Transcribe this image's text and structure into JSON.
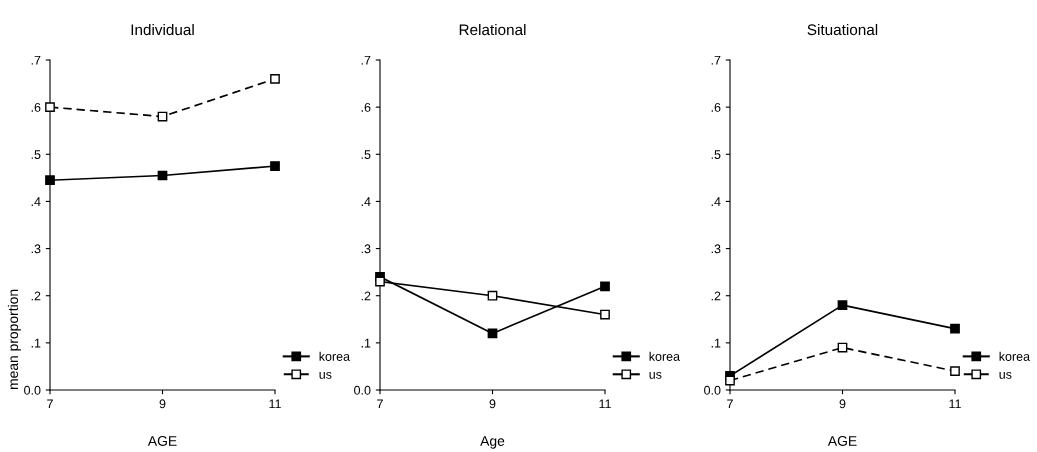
{
  "chart_data": [
    {
      "type": "line",
      "title": "Individual",
      "xlabel": "AGE",
      "ylabel": "mean proportion",
      "x": [
        7,
        9,
        11
      ],
      "xlim": [
        7,
        11
      ],
      "xticks": [
        7,
        9,
        11
      ],
      "ylim": [
        0,
        0.7
      ],
      "yticks": [
        {
          "value": 0,
          "label": "0.0"
        },
        {
          "value": 0.1,
          "label": ".1"
        },
        {
          "value": 0.2,
          "label": ".2"
        },
        {
          "value": 0.3,
          "label": ".3"
        },
        {
          "value": 0.4,
          "label": ".4"
        },
        {
          "value": 0.5,
          "label": ".5"
        },
        {
          "value": 0.6,
          "label": ".6"
        },
        {
          "value": 0.7,
          "label": ".7"
        }
      ],
      "legend": "bottom right",
      "grid": false,
      "marker": "square",
      "series": [
        {
          "name": "korea",
          "color": "#000000",
          "line_style": "solid",
          "values": [
            0.445,
            0.455,
            0.475
          ]
        },
        {
          "name": "us",
          "color": "#000000",
          "line_style": "dashed",
          "values": [
            0.6,
            0.58,
            0.66
          ]
        }
      ]
    },
    {
      "type": "line",
      "title": "Relational",
      "xlabel": "Age",
      "x": [
        7,
        9,
        11
      ],
      "xlim": [
        7,
        11
      ],
      "xticks": [
        7,
        9,
        11
      ],
      "ylim": [
        0,
        0.7
      ],
      "yticks": [
        {
          "value": 0,
          "label": "0.0"
        },
        {
          "value": 0.1,
          "label": ".1"
        },
        {
          "value": 0.2,
          "label": ".2"
        },
        {
          "value": 0.3,
          "label": ".3"
        },
        {
          "value": 0.4,
          "label": ".4"
        },
        {
          "value": 0.5,
          "label": ".5"
        },
        {
          "value": 0.6,
          "label": ".6"
        },
        {
          "value": 0.7,
          "label": ".7"
        }
      ],
      "legend": "bottom right",
      "grid": false,
      "marker": "square",
      "series": [
        {
          "name": "korea",
          "color": "#000000",
          "line_style": "solid",
          "values": [
            0.24,
            0.12,
            0.22
          ]
        },
        {
          "name": "us",
          "color": "#000000",
          "line_style": "solid",
          "values": [
            0.23,
            0.2,
            0.16
          ]
        }
      ]
    },
    {
      "type": "line",
      "title": "Situational",
      "xlabel": "AGE",
      "x": [
        7,
        9,
        11
      ],
      "xlim": [
        7,
        11
      ],
      "xticks": [
        7,
        9,
        11
      ],
      "ylim": [
        0,
        0.7
      ],
      "yticks": [
        {
          "value": 0,
          "label": "0.0"
        },
        {
          "value": 0.1,
          "label": ".1"
        },
        {
          "value": 0.2,
          "label": ".2"
        },
        {
          "value": 0.3,
          "label": ".3"
        },
        {
          "value": 0.4,
          "label": ".4"
        },
        {
          "value": 0.5,
          "label": ".5"
        },
        {
          "value": 0.6,
          "label": ".6"
        },
        {
          "value": 0.7,
          "label": ".7"
        }
      ],
      "legend": "bottom right",
      "grid": false,
      "marker": "square",
      "series": [
        {
          "name": "korea",
          "color": "#000000",
          "line_style": "solid",
          "values": [
            0.03,
            0.18,
            0.13
          ]
        },
        {
          "name": "us",
          "color": "#000000",
          "line_style": "dashed",
          "values": [
            0.02,
            0.09,
            0.04
          ]
        }
      ]
    }
  ]
}
